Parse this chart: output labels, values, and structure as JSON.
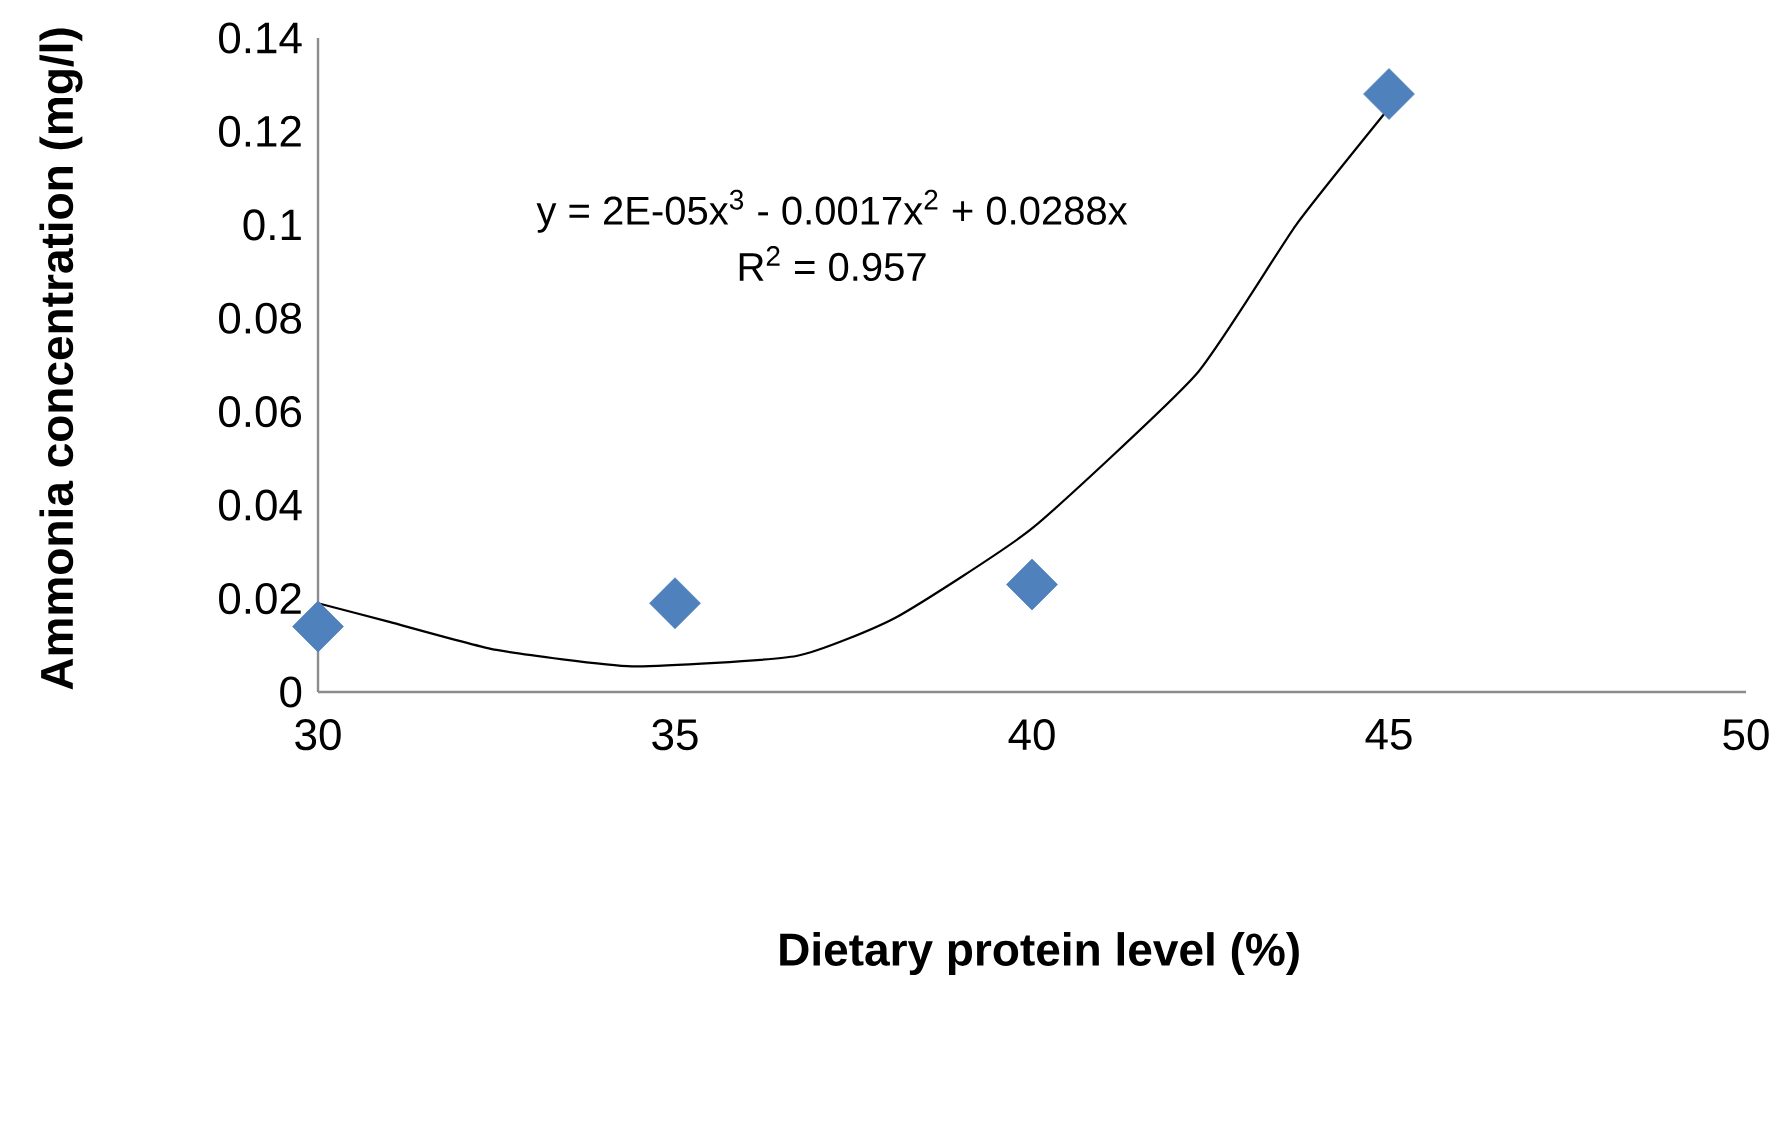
{
  "chart_data": {
    "type": "scatter",
    "xlabel": "Dietary protein level (%)",
    "ylabel": "Ammonia concentration (mg/l)",
    "annotations": [
      "y = 2E-05x$^{3}$ - 0.0017x$^{2}$ + 0.0288x",
      "R$^{2}$ = 0.957"
    ],
    "xlim": [
      30,
      50
    ],
    "xticks": [
      30,
      35,
      40,
      45,
      50
    ],
    "ylim": [
      0,
      0.14
    ],
    "yticks": [
      0,
      0.02,
      0.04,
      0.06,
      0.08,
      0.1,
      0.12,
      0.14
    ],
    "series": [
      {
        "type": "scatter",
        "color": "#4f81bd",
        "marker": "diamond",
        "x": [
          30,
          35,
          40,
          45
        ],
        "values": [
          0.014,
          0.019,
          0.023,
          0.128
        ]
      },
      {
        "type": "line",
        "color": "#000000",
        "marker": "none",
        "line_style": "solid",
        "x": [
          30,
          31,
          32.5,
          34.4,
          36.7,
          38.1,
          40,
          42.3,
          43.7,
          45
        ],
        "values": [
          0.019,
          0.015,
          0.009,
          0.0055,
          0.0077,
          0.016,
          0.035,
          0.068,
          0.1,
          0.125
        ]
      }
    ]
  }
}
